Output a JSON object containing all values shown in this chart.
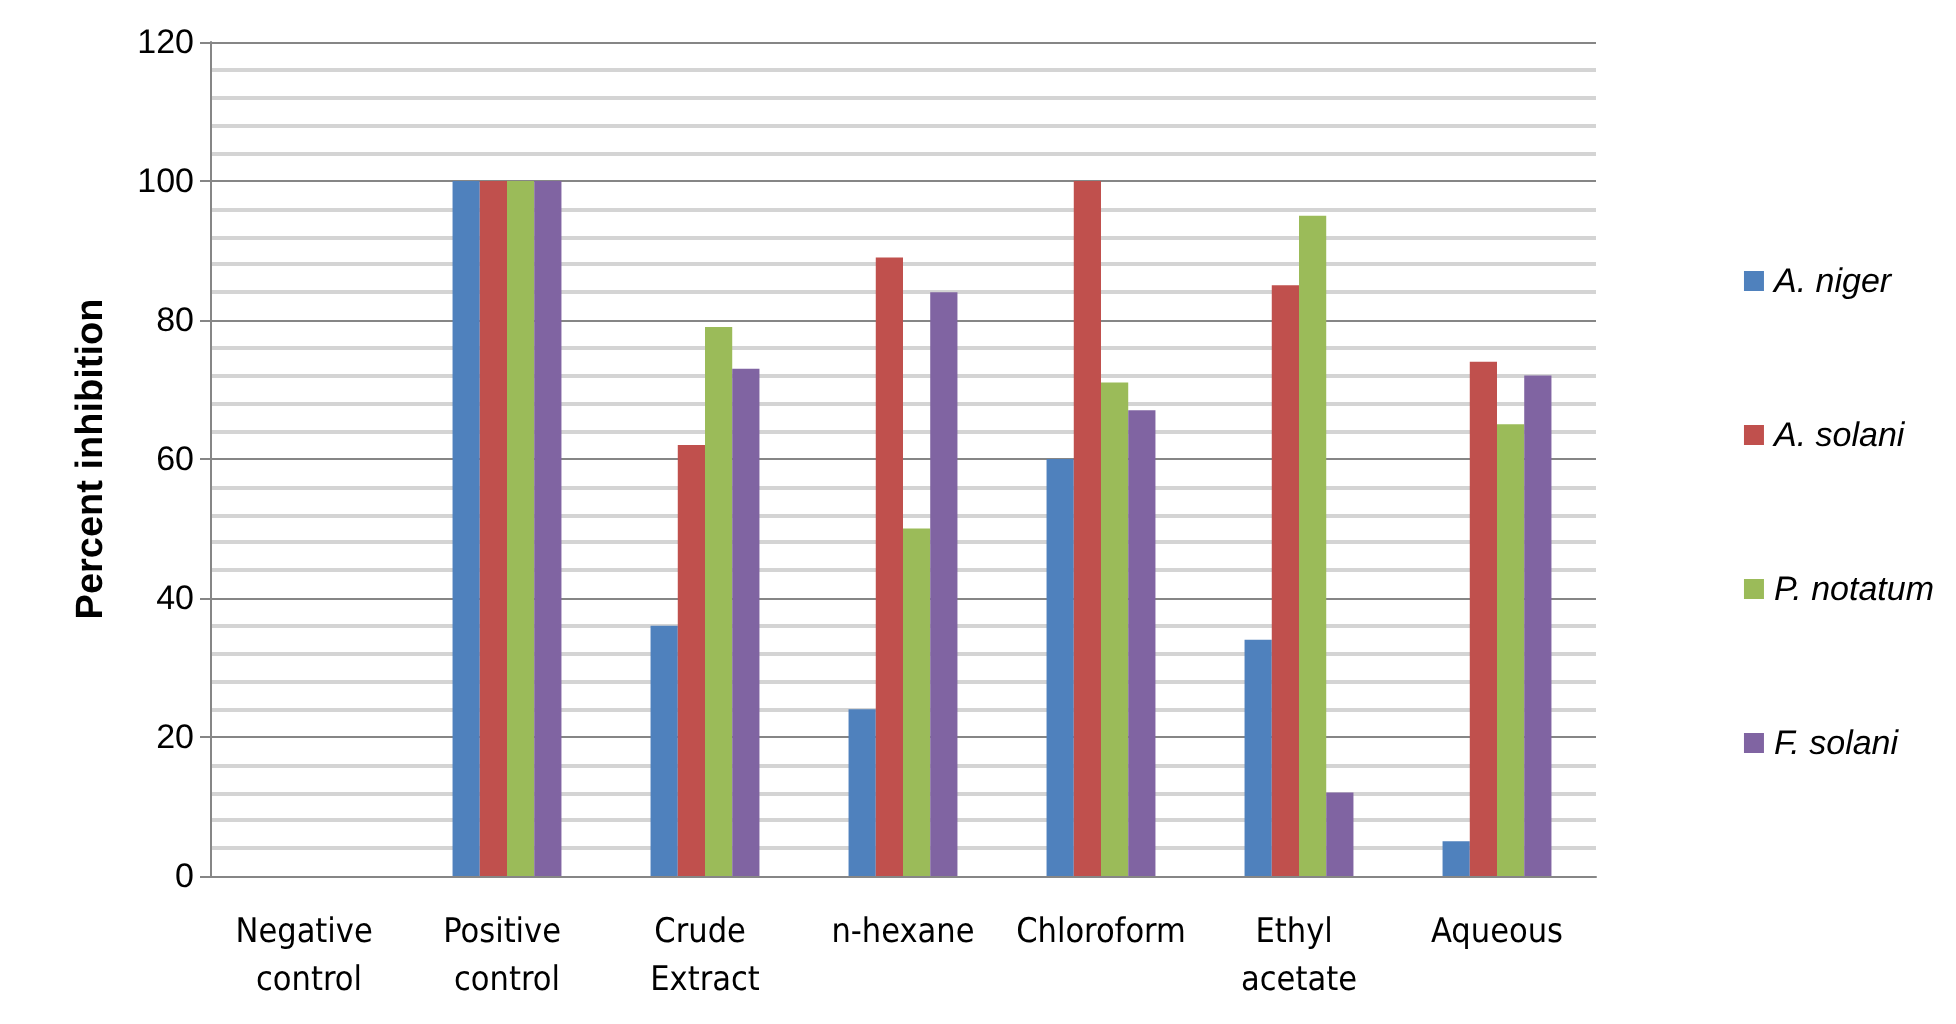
{
  "chart_data": {
    "type": "bar",
    "ylabel": "Percent inhibition",
    "categories": [
      "Negative control",
      "Positive control",
      "Crude Extract",
      "n-hexane",
      "Chloroform",
      "Ethyl acetate",
      "Aqueous"
    ],
    "series": [
      {
        "name": "A. niger",
        "color": "#4f81bd",
        "values": [
          0,
          100,
          36,
          24,
          60,
          34,
          5
        ]
      },
      {
        "name": "A. solani",
        "color": "#c0504d",
        "values": [
          0,
          100,
          62,
          89,
          100,
          85,
          74
        ]
      },
      {
        "name": "P. notatum",
        "color": "#9bbb59",
        "values": [
          0,
          100,
          79,
          50,
          71,
          95,
          65
        ]
      },
      {
        "name": "F. solani",
        "color": "#8064a2",
        "values": [
          0,
          100,
          73,
          84,
          67,
          12,
          72
        ]
      }
    ],
    "ylim": [
      0,
      120
    ],
    "yticks": [
      0,
      20,
      40,
      60,
      80,
      100,
      120
    ],
    "grid": true,
    "legend": "right"
  }
}
